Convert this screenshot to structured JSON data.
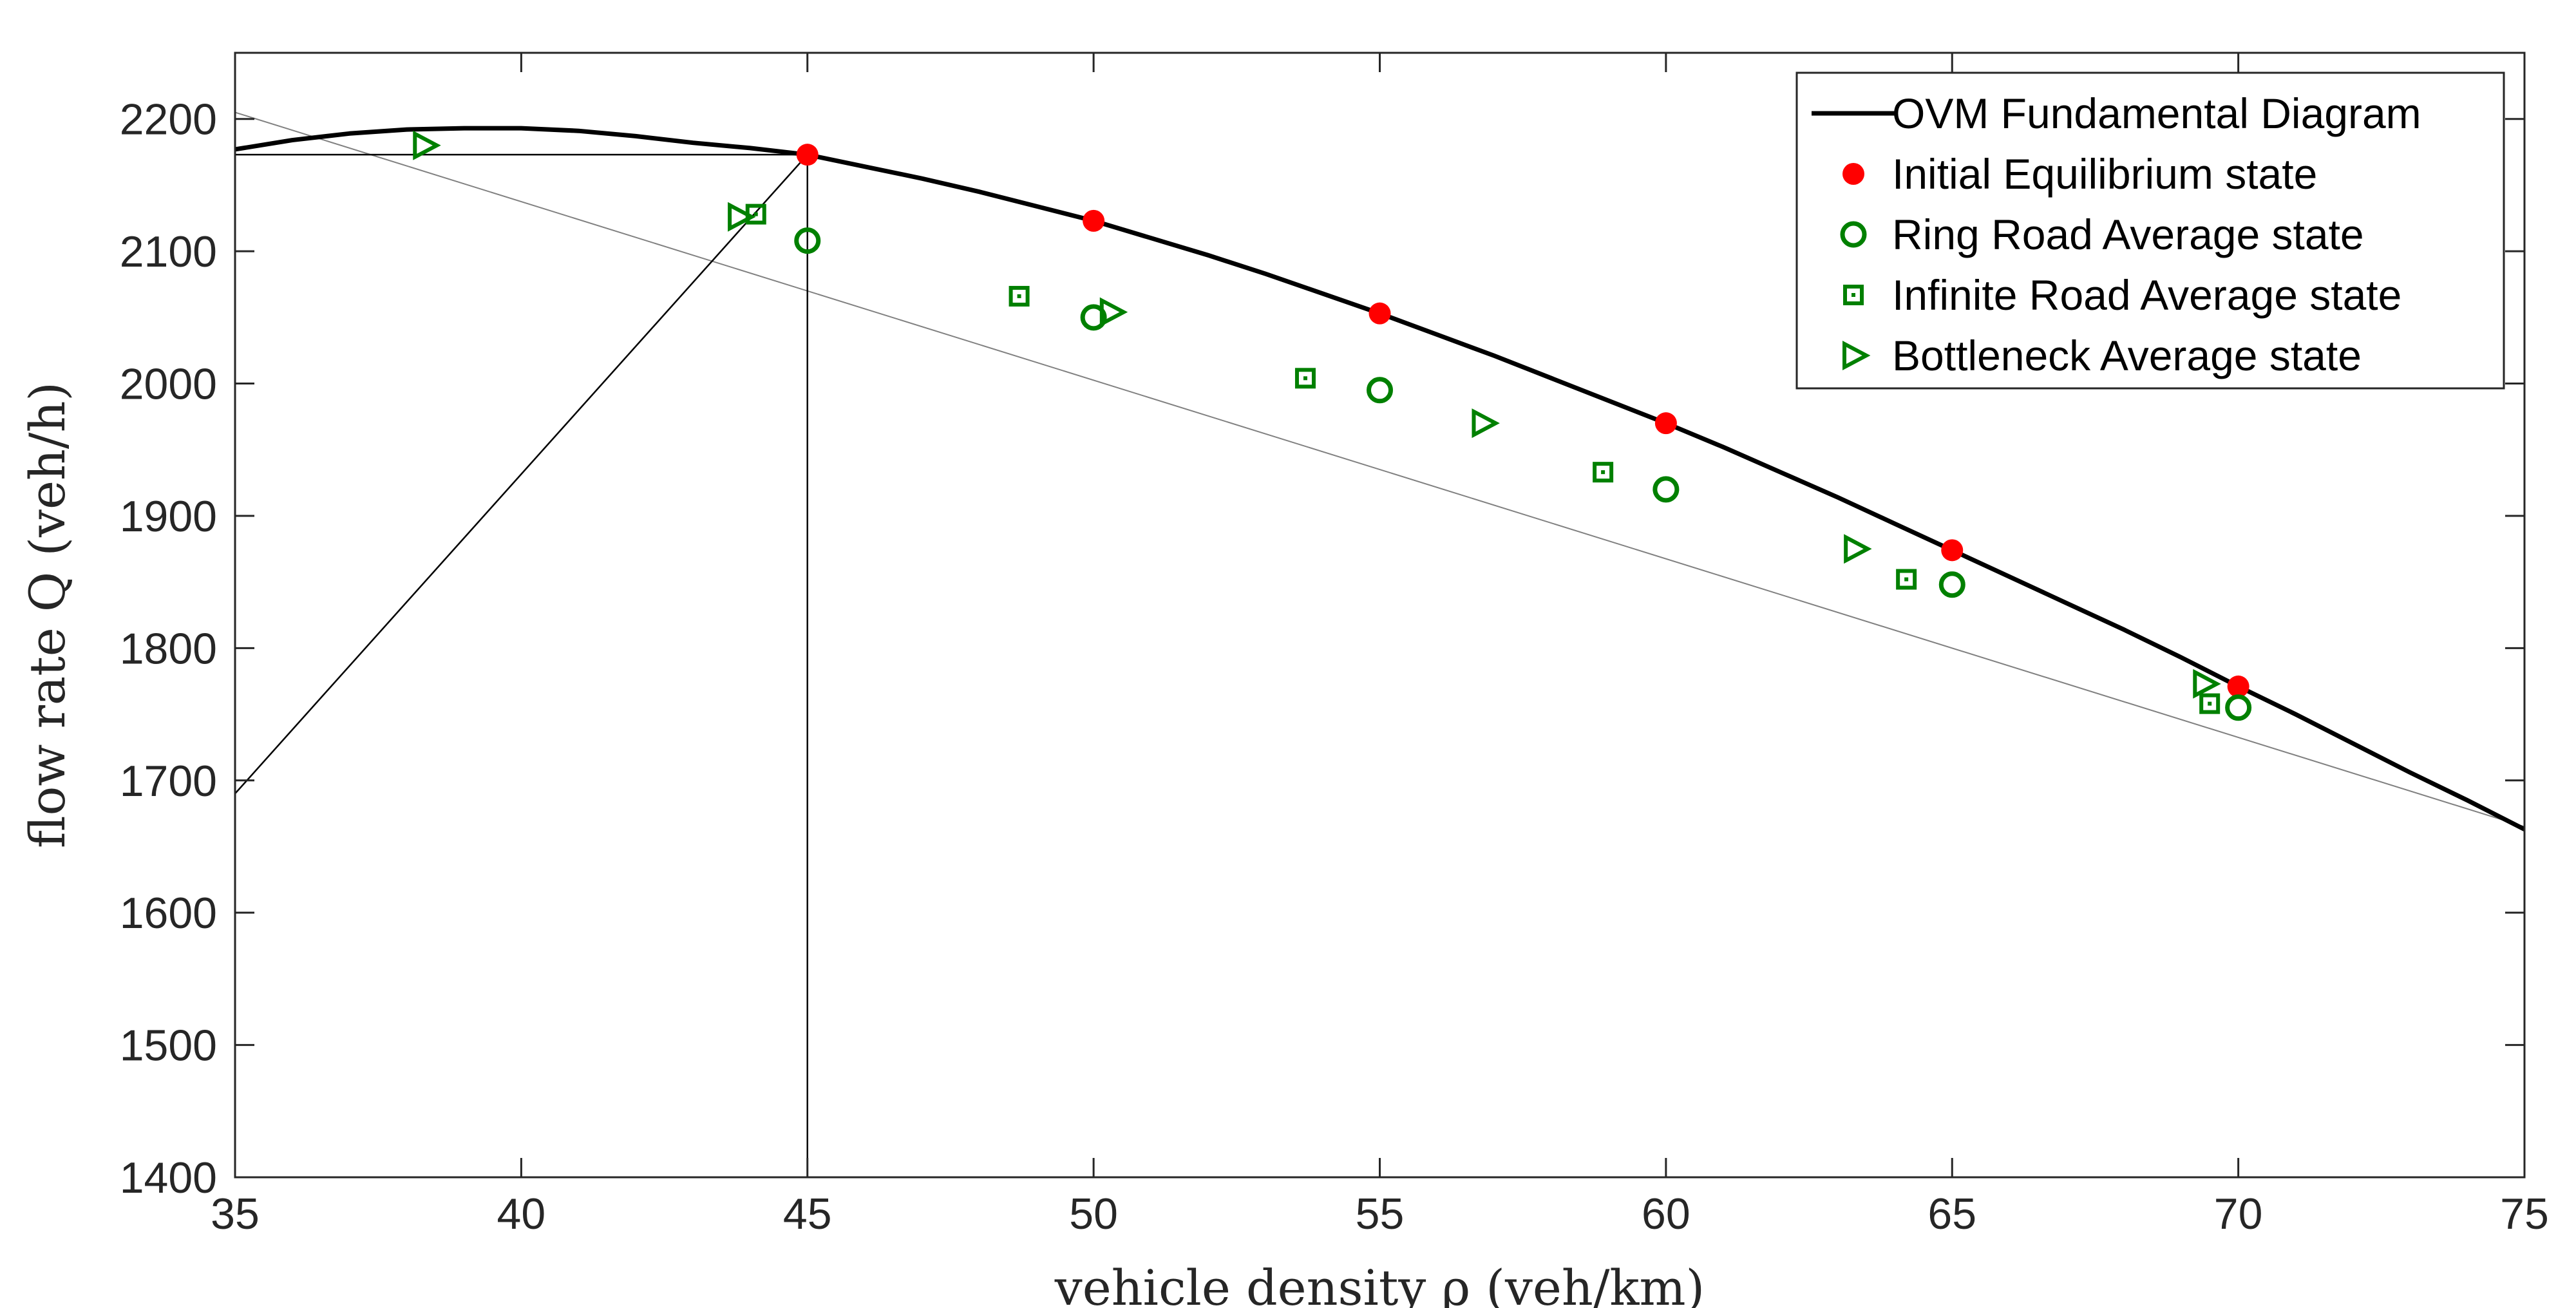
{
  "chart_data": {
    "type": "line",
    "title": "",
    "xlabel": "vehicle density ρ (veh/km)",
    "ylabel": "flow rate Q (veh/h)",
    "xlim": [
      35,
      75
    ],
    "ylim": [
      1400,
      2250
    ],
    "xticks": [
      "35",
      "40",
      "45",
      "50",
      "55",
      "60",
      "65",
      "70",
      "75"
    ],
    "yticks": [
      "1400",
      "1500",
      "1600",
      "1700",
      "1800",
      "1900",
      "2000",
      "2100",
      "2200"
    ],
    "grid": false,
    "legend_position": "top-right",
    "series": [
      {
        "name": "OVM Fundamental Diagram",
        "kind": "curve",
        "color": "#000000",
        "x": [
          35,
          36,
          37,
          38,
          39,
          40,
          41,
          42,
          43,
          44,
          45,
          46,
          47,
          48,
          49,
          50,
          51,
          52,
          53,
          54,
          55,
          56,
          57,
          58,
          59,
          60,
          61,
          62,
          63,
          64,
          65,
          66,
          67,
          68,
          69,
          70,
          71,
          72,
          73,
          74,
          75
        ],
        "y": [
          2177,
          2184,
          2189,
          2192,
          2193,
          2193,
          2191,
          2187,
          2182,
          2178,
          2173,
          2164,
          2155,
          2145,
          2134,
          2123,
          2110,
          2097,
          2083,
          2068,
          2053,
          2037,
          2021,
          2004,
          1987,
          1970,
          1952,
          1933,
          1914,
          1894,
          1874,
          1854,
          1834,
          1814,
          1793,
          1771,
          1750,
          1728,
          1706,
          1685,
          1663
        ]
      },
      {
        "name": "Initial Equilibrium state",
        "kind": "marker-dot",
        "color": "#ff0000",
        "x": [
          45,
          50,
          55,
          60,
          65,
          70
        ],
        "y": [
          2173,
          2123,
          2053,
          1970,
          1874,
          1771
        ]
      },
      {
        "name": "Ring Road Average state",
        "kind": "marker-circle",
        "color": "#008000",
        "x": [
          45,
          50,
          55,
          60,
          65,
          70
        ],
        "y": [
          2108,
          2050,
          1995,
          1920,
          1848,
          1755
        ]
      },
      {
        "name": "Infinite Road Average state",
        "kind": "marker-square",
        "color": "#008000",
        "x": [
          44.1,
          48.7,
          53.7,
          58.9,
          64.2,
          69.5
        ],
        "y": [
          2128,
          2066,
          2004,
          1933,
          1852,
          1758
        ]
      },
      {
        "name": "Bottleneck Average state",
        "kind": "marker-triangle",
        "color": "#008000",
        "x": [
          38.3,
          43.8,
          50.3,
          56.8,
          63.3,
          69.4
        ],
        "y": [
          2180,
          2126,
          2054,
          1970,
          1875,
          1773
        ]
      }
    ],
    "reference_lines": [
      {
        "name": "secant-line",
        "color": "#808080",
        "x": [
          35,
          75
        ],
        "y": [
          2205,
          1665
        ]
      },
      {
        "name": "wave-line",
        "color": "#000000",
        "x": [
          35,
          45
        ],
        "y": [
          1690,
          2173
        ]
      },
      {
        "name": "horizontal-guide",
        "color": "#000000",
        "x": [
          35,
          45
        ],
        "y": [
          2173,
          2173
        ]
      },
      {
        "name": "vertical-guide",
        "color": "#000000",
        "x": [
          45,
          45
        ],
        "y": [
          1400,
          2173
        ]
      }
    ]
  }
}
